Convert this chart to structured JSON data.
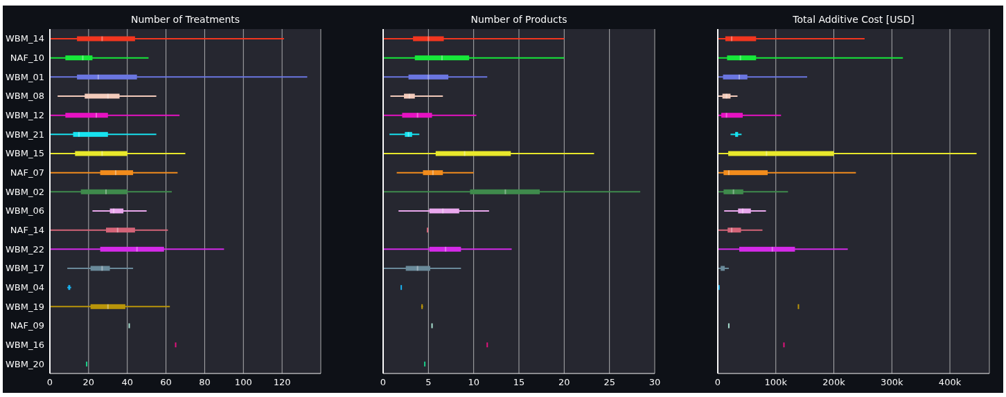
{
  "chart_data": [
    {
      "type": "box",
      "orientation": "horizontal",
      "title": "Number of Treatments",
      "categories": [
        "WBM_14",
        "NAF_10",
        "WBM_01",
        "WBM_08",
        "WBM_12",
        "WBM_21",
        "WBM_15",
        "NAF_07",
        "WBM_02",
        "WBM_06",
        "NAF_14",
        "WBM_22",
        "WBM_17",
        "WBM_04",
        "WBM_19",
        "NAF_09",
        "WBM_16",
        "WBM_20"
      ],
      "colors": [
        "#f2361f",
        "#17e83a",
        "#6a76e0",
        "#f3cbbb",
        "#e612c2",
        "#17e2ef",
        "#e8e82b",
        "#f28c1c",
        "#3f8a4c",
        "#eaa8ee",
        "#d46478",
        "#d42ae8",
        "#6a8a9a",
        "#1ab2f0",
        "#b8940a",
        "#a8e0d0",
        "#e0127c",
        "#1ad08a"
      ],
      "boxes": [
        {
          "low": 0,
          "q1": 14,
          "median": 27,
          "q3": 44,
          "high": 121
        },
        {
          "low": 0,
          "q1": 8,
          "median": 17,
          "q3": 22,
          "high": 51
        },
        {
          "low": 0,
          "q1": 14,
          "median": 25,
          "q3": 45,
          "high": 133
        },
        {
          "low": 4,
          "q1": 18,
          "median": 30,
          "q3": 36,
          "high": 55
        },
        {
          "low": 0,
          "q1": 8,
          "median": 24,
          "q3": 30,
          "high": 67
        },
        {
          "low": 0,
          "q1": 12,
          "median": 15,
          "q3": 30,
          "high": 55
        },
        {
          "low": 0,
          "q1": 13,
          "median": 27,
          "q3": 40,
          "high": 70
        },
        {
          "low": 0,
          "q1": 26,
          "median": 34,
          "q3": 43,
          "high": 66
        },
        {
          "low": 0,
          "q1": 16,
          "median": 29,
          "q3": 40,
          "high": 63
        },
        {
          "low": 22,
          "q1": 31,
          "median": 33,
          "q3": 38,
          "high": 50
        },
        {
          "low": 0,
          "q1": 29,
          "median": 35,
          "q3": 44,
          "high": 61
        },
        {
          "low": 0,
          "q1": 26,
          "median": 45,
          "q3": 59,
          "high": 90
        },
        {
          "low": 9,
          "q1": 21,
          "median": 27,
          "q3": 31,
          "high": 43
        },
        {
          "low": 9,
          "q1": 9.5,
          "median": 10,
          "q3": 10.5,
          "high": 11
        },
        {
          "low": 0,
          "q1": 21,
          "median": 30,
          "q3": 39,
          "high": 62
        },
        {
          "low": 41,
          "q1": 41,
          "median": 41,
          "q3": 41,
          "high": 41
        },
        {
          "low": 65,
          "q1": 65,
          "median": 65,
          "q3": 65,
          "high": 65
        },
        {
          "low": 19,
          "q1": 19,
          "median": 19,
          "q3": 19,
          "high": 19
        }
      ],
      "xlim": [
        0,
        140
      ],
      "xticks": [
        0,
        20,
        40,
        60,
        80,
        100,
        120
      ],
      "grid": "x"
    },
    {
      "type": "box",
      "orientation": "horizontal",
      "title": "Number of Products",
      "categories": [
        null,
        null,
        null,
        null,
        null,
        null,
        null,
        null,
        null,
        null,
        null,
        null,
        null,
        null,
        null,
        null,
        null,
        null
      ],
      "colors": [
        "#f2361f",
        "#17e83a",
        "#6a76e0",
        "#f3cbbb",
        "#e612c2",
        "#17e2ef",
        "#e8e82b",
        "#f28c1c",
        "#3f8a4c",
        "#eaa8ee",
        "#d46478",
        "#d42ae8",
        "#6a8a9a",
        "#1ab2f0",
        "#b8940a",
        "#a8e0d0",
        "#e0127c",
        "#1ad08a"
      ],
      "boxes": [
        {
          "low": 0,
          "q1": 3.3,
          "median": 5,
          "q3": 6.7,
          "high": 20
        },
        {
          "low": 0,
          "q1": 3.5,
          "median": 6.5,
          "q3": 9.5,
          "high": 20
        },
        {
          "low": 0,
          "q1": 2.8,
          "median": 5,
          "q3": 7.2,
          "high": 11.5
        },
        {
          "low": 0.8,
          "q1": 2.3,
          "median": 2.9,
          "q3": 3.5,
          "high": 6.6
        },
        {
          "low": 0,
          "q1": 2.1,
          "median": 3.8,
          "q3": 5.4,
          "high": 10.3
        },
        {
          "low": 0.7,
          "q1": 2.4,
          "median": 2.8,
          "q3": 3.2,
          "high": 4
        },
        {
          "low": 0,
          "q1": 5.8,
          "median": 9,
          "q3": 14.1,
          "high": 23.3
        },
        {
          "low": 1.5,
          "q1": 4.4,
          "median": 5.5,
          "q3": 6.6,
          "high": 10
        },
        {
          "low": 0,
          "q1": 9.6,
          "median": 13.5,
          "q3": 17.3,
          "high": 28.4
        },
        {
          "low": 1.7,
          "q1": 5.1,
          "median": 6.6,
          "q3": 8.4,
          "high": 11.7
        },
        {
          "low": 4.9,
          "q1": 4.9,
          "median": 4.9,
          "q3": 4.9,
          "high": 4.9
        },
        {
          "low": 0,
          "q1": 5.1,
          "median": 6.9,
          "q3": 8.6,
          "high": 14.2
        },
        {
          "low": 0,
          "q1": 2.5,
          "median": 3.8,
          "q3": 5.2,
          "high": 8.6
        },
        {
          "low": 2,
          "q1": 2,
          "median": 2,
          "q3": 2,
          "high": 2
        },
        {
          "low": 4.2,
          "q1": 4.3,
          "median": 4.3,
          "q3": 4.3,
          "high": 4.4
        },
        {
          "low": 5.4,
          "q1": 5.4,
          "median": 5.4,
          "q3": 5.4,
          "high": 5.4
        },
        {
          "low": 11.5,
          "q1": 11.5,
          "median": 11.5,
          "q3": 11.5,
          "high": 11.5
        },
        {
          "low": 4.6,
          "q1": 4.6,
          "median": 4.6,
          "q3": 4.6,
          "high": 4.6
        }
      ],
      "xlim": [
        0,
        30
      ],
      "xticks": [
        0,
        5,
        10,
        15,
        20,
        25,
        30
      ],
      "grid": "x",
      "tick_labels": "x"
    },
    {
      "type": "box",
      "orientation": "horizontal",
      "title": "Total Additive Cost [USD]",
      "categories": [
        null,
        null,
        null,
        null,
        null,
        null,
        null,
        null,
        null,
        null,
        null,
        null,
        null,
        null,
        null,
        null,
        null,
        null
      ],
      "colors": [
        "#f2361f",
        "#17e83a",
        "#6a76e0",
        "#f3cbbb",
        "#e612c2",
        "#17e2ef",
        "#e8e82b",
        "#f28c1c",
        "#3f8a4c",
        "#eaa8ee",
        "#d46478",
        "#d42ae8",
        "#6a8a9a",
        "#1ab2f0",
        "#b8940a",
        "#a8e0d0",
        "#e0127c",
        null
      ],
      "boxes": [
        {
          "low": 0,
          "q1": 13000,
          "median": 24000,
          "q3": 66000,
          "high": 253000
        },
        {
          "low": 0,
          "q1": 16000,
          "median": 39000,
          "q3": 66000,
          "high": 319000
        },
        {
          "low": 0,
          "q1": 9000,
          "median": 37000,
          "q3": 51000,
          "high": 154000
        },
        {
          "low": 0,
          "q1": 8000,
          "median": 15000,
          "q3": 22000,
          "high": 34000
        },
        {
          "low": 0,
          "q1": 6000,
          "median": 15000,
          "q3": 43000,
          "high": 109000
        },
        {
          "low": 22000,
          "q1": 30000,
          "median": 33000,
          "q3": 35000,
          "high": 41000
        },
        {
          "low": 0,
          "q1": 18000,
          "median": 84000,
          "q3": 200000,
          "high": 446000
        },
        {
          "low": 0,
          "q1": 10000,
          "median": 19000,
          "q3": 86000,
          "high": 238000
        },
        {
          "low": 0,
          "q1": 10000,
          "median": 27000,
          "q3": 44000,
          "high": 121000
        },
        {
          "low": 11000,
          "q1": 35000,
          "median": 43000,
          "q3": 57000,
          "high": 83000
        },
        {
          "low": 0,
          "q1": 17000,
          "median": 24000,
          "q3": 40000,
          "high": 77000
        },
        {
          "low": 0,
          "q1": 37000,
          "median": 94000,
          "q3": 133000,
          "high": 224000
        },
        {
          "low": 0,
          "q1": 5000,
          "median": 8000,
          "q3": 12000,
          "high": 19000
        },
        {
          "low": 1000,
          "q1": 2000,
          "median": 2000,
          "q3": 2000,
          "high": 3000
        },
        {
          "low": 139000,
          "q1": 139000,
          "median": 139000,
          "q3": 139000,
          "high": 139000
        },
        {
          "low": 19000,
          "q1": 19000,
          "median": 19000,
          "q3": 19000,
          "high": 19000
        },
        {
          "low": 114000,
          "q1": 114000,
          "median": 114000,
          "q3": 114000,
          "high": 114000
        },
        null
      ],
      "xlim": [
        0,
        468000
      ],
      "xticks": [
        0,
        {
          "value": 100000,
          "label": "100k"
        },
        {
          "value": 200000,
          "label": "200k"
        },
        {
          "value": 300000,
          "label": "300k"
        },
        {
          "value": 400000,
          "label": "400k"
        }
      ],
      "grid": "x",
      "tick_labels": "x"
    }
  ]
}
